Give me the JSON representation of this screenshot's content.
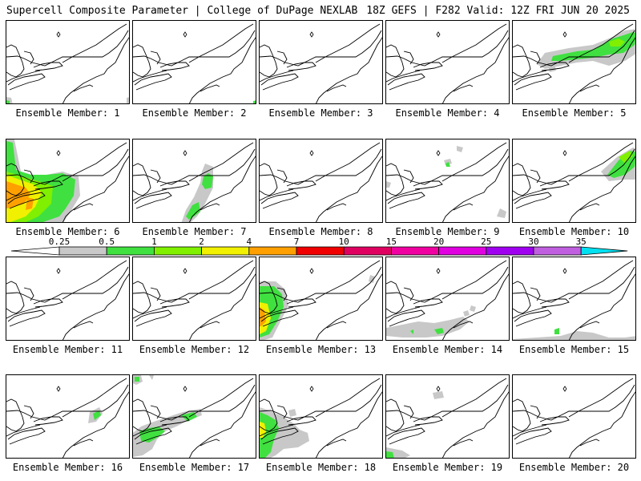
{
  "header": {
    "left": "Supercell Composite Parameter | College of DuPage NEXLAB",
    "right": "18Z GEFS | F282 Valid: 12Z FRI JUN 20 2025"
  },
  "colorbar": {
    "levels": [
      "0.25",
      "0.5",
      "1",
      "2",
      "4",
      "7",
      "10",
      "15",
      "20",
      "25",
      "30",
      "35"
    ],
    "colors": [
      "#c8c8c8",
      "#40e040",
      "#80f000",
      "#f0f000",
      "#ffa000",
      "#f00000",
      "#e00060",
      "#f000a0",
      "#e000e0",
      "#a000f0",
      "#c060e0",
      "#00e0f0"
    ]
  },
  "members": [
    {
      "label": "Ensemble Member: 1"
    },
    {
      "label": "Ensemble Member: 2"
    },
    {
      "label": "Ensemble Member: 3"
    },
    {
      "label": "Ensemble Member: 4"
    },
    {
      "label": "Ensemble Member: 5"
    },
    {
      "label": "Ensemble Member: 6"
    },
    {
      "label": "Ensemble Member: 7"
    },
    {
      "label": "Ensemble Member: 8"
    },
    {
      "label": "Ensemble Member: 9"
    },
    {
      "label": "Ensemble Member: 10"
    },
    {
      "label": "Ensemble Member: 11"
    },
    {
      "label": "Ensemble Member: 12"
    },
    {
      "label": "Ensemble Member: 13"
    },
    {
      "label": "Ensemble Member: 14"
    },
    {
      "label": "Ensemble Member: 15"
    },
    {
      "label": "Ensemble Member: 16"
    },
    {
      "label": "Ensemble Member: 17"
    },
    {
      "label": "Ensemble Member: 18"
    },
    {
      "label": "Ensemble Member: 19"
    },
    {
      "label": "Ensemble Member: 20"
    }
  ]
}
